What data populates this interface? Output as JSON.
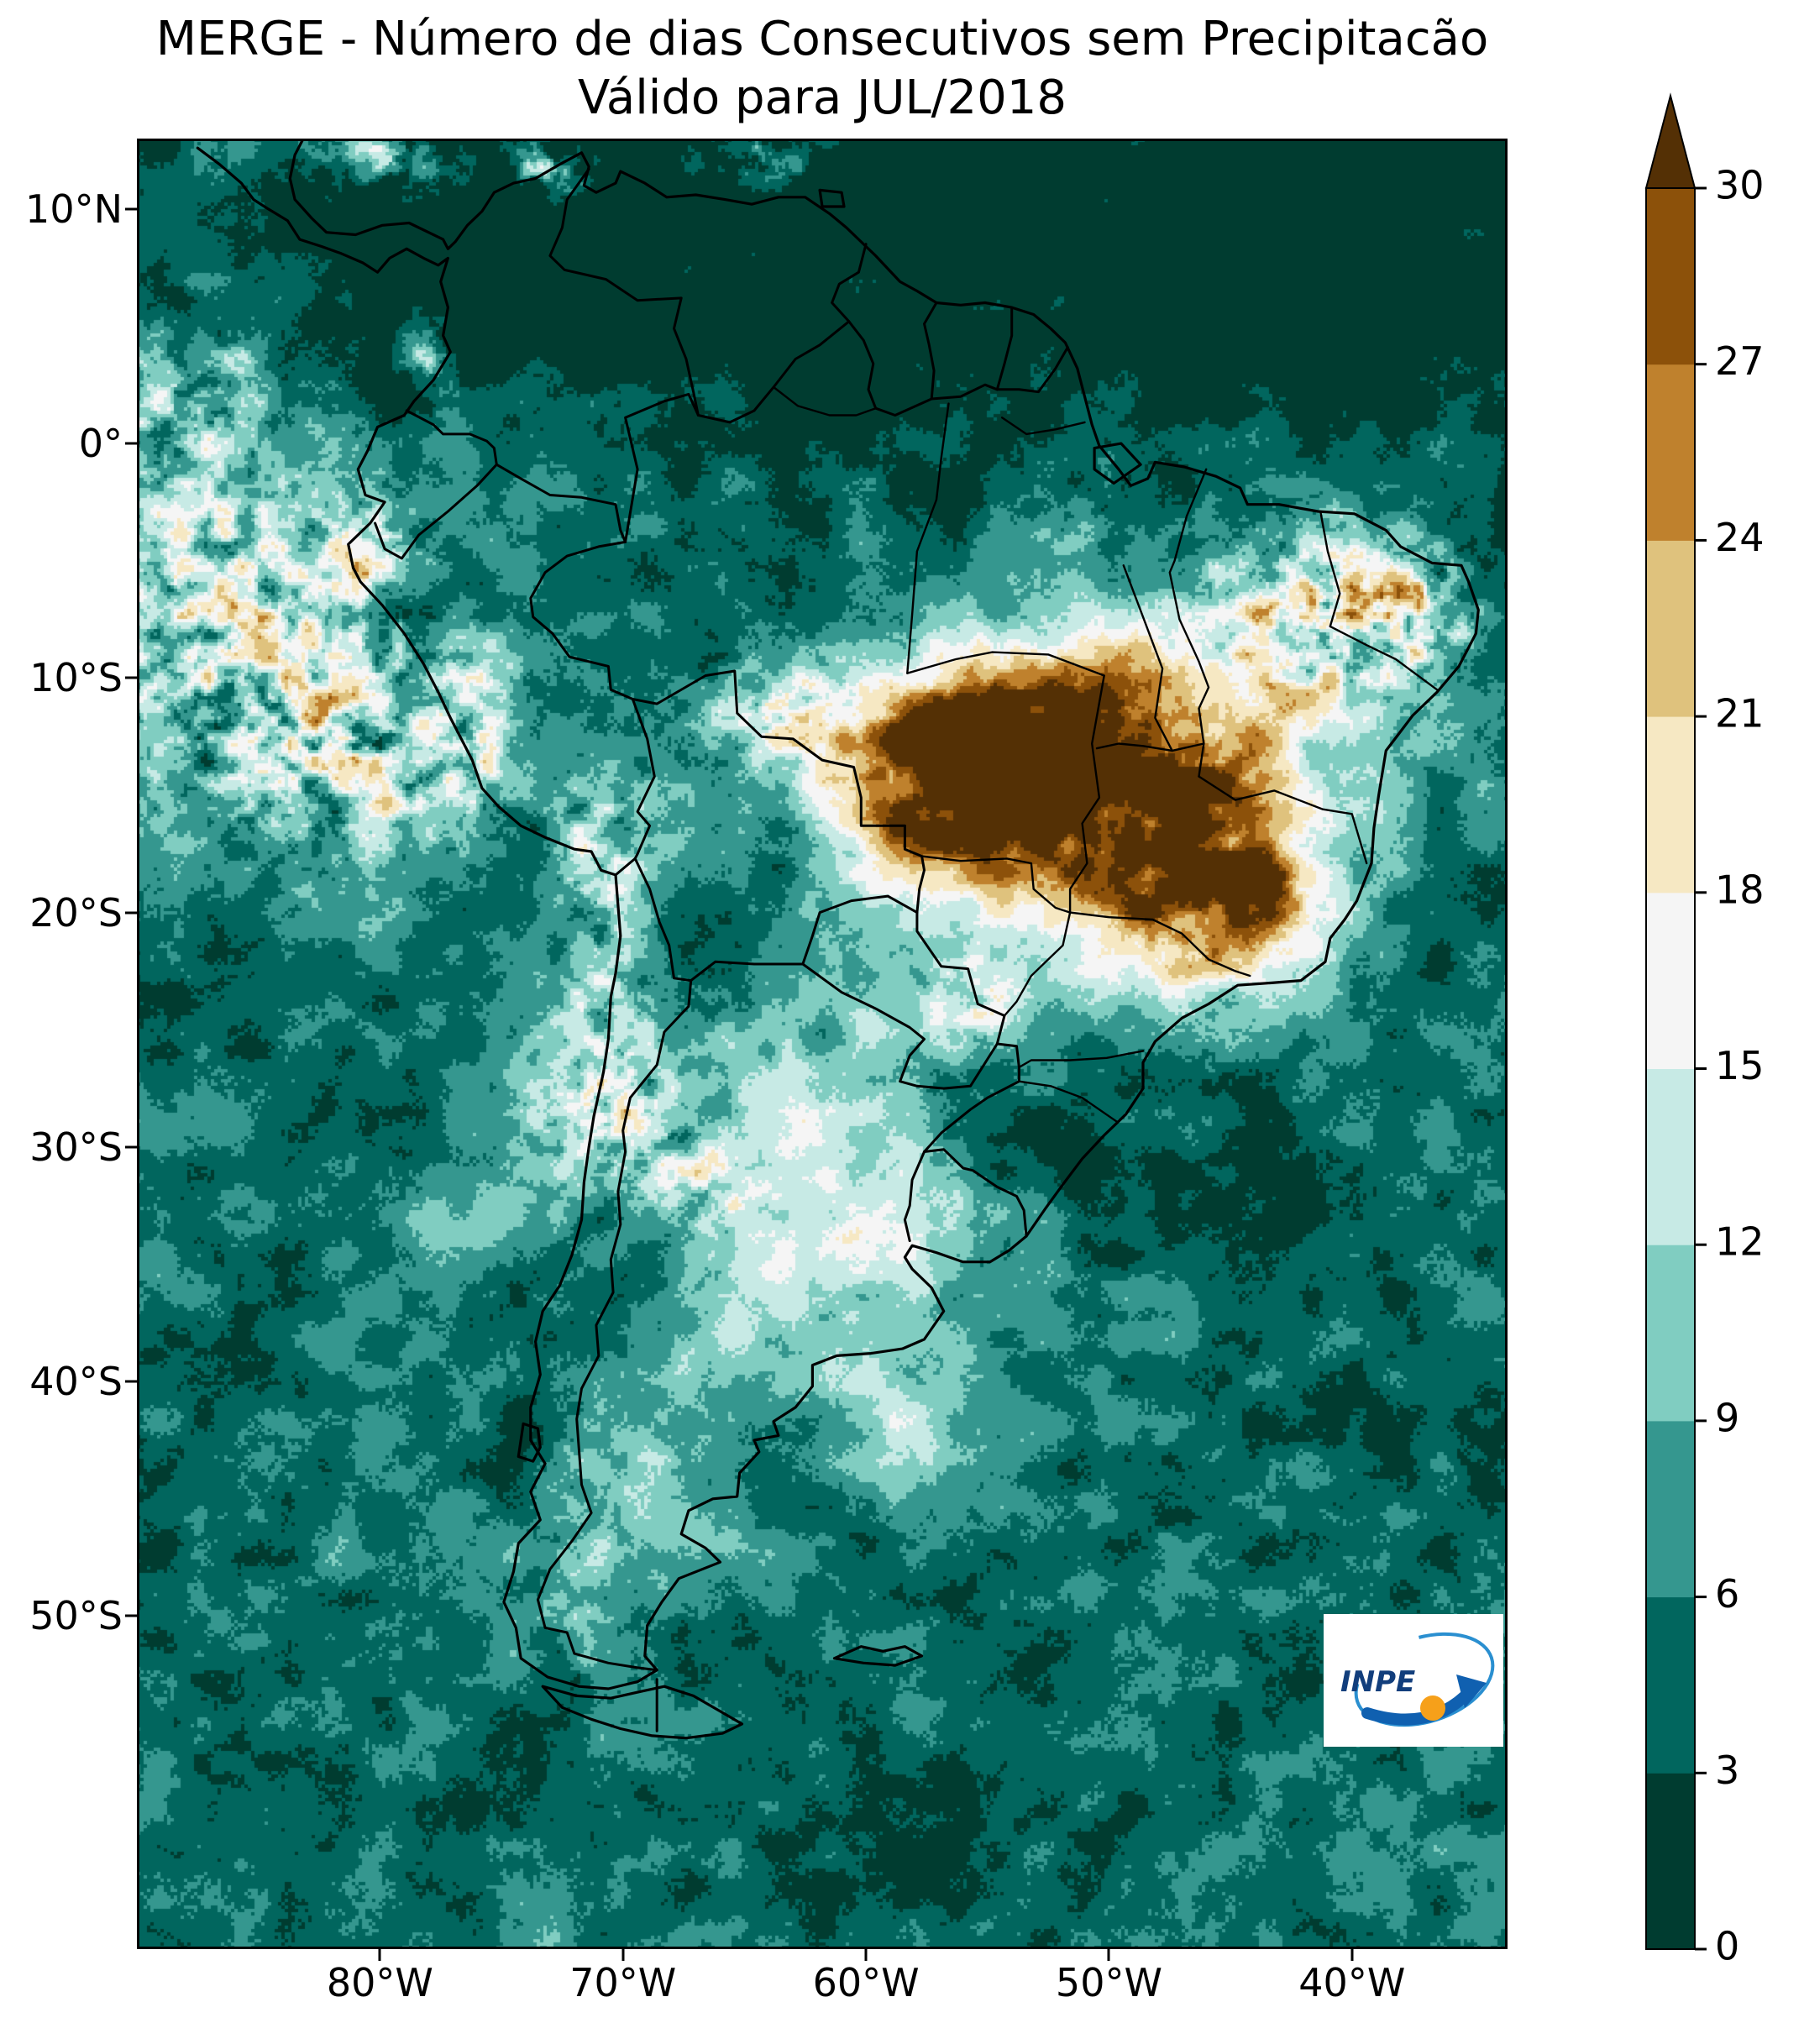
{
  "title": {
    "line1": "MERGE - Número de dias Consecutivos sem Precipitacão",
    "line2": "Válido para JUL/2018"
  },
  "axes": {
    "x_ticks": [
      {
        "label": "80°W",
        "lon": -80
      },
      {
        "label": "70°W",
        "lon": -70
      },
      {
        "label": "60°W",
        "lon": -60
      },
      {
        "label": "50°W",
        "lon": -50
      },
      {
        "label": "40°W",
        "lon": -40
      }
    ],
    "y_ticks": [
      {
        "label": "10°N",
        "lat": 10
      },
      {
        "label": "0°",
        "lat": 0
      },
      {
        "label": "10°S",
        "lat": -10
      },
      {
        "label": "20°S",
        "lat": -20
      },
      {
        "label": "30°S",
        "lat": -30
      },
      {
        "label": "40°S",
        "lat": -40
      },
      {
        "label": "50°S",
        "lat": -50
      }
    ],
    "extent": {
      "lon_min": -90,
      "lon_max": -33.6,
      "lat_min": -64.2,
      "lat_max": 13
    }
  },
  "colorbar": {
    "ticks": [
      "0",
      "3",
      "6",
      "9",
      "12",
      "15",
      "18",
      "21",
      "24",
      "27",
      "30"
    ],
    "band_colors": [
      "#003c30",
      "#01665e",
      "#35978f",
      "#80cdc1",
      "#c7eae5",
      "#f5f5f5",
      "#f6e8c3",
      "#dfc27d",
      "#bf812d",
      "#8c510a"
    ],
    "extend_color": "#543005",
    "extend": "max",
    "interval": 3
  },
  "logo": {
    "text": "INPE"
  },
  "chart_data": {
    "type": "heatmap",
    "title": "MERGE - Número de dias Consecutivos sem Precipitacão — Válido para JUL/2018",
    "value_units": "days",
    "value_range": [
      0,
      30
    ],
    "value_step": 3,
    "colormap": "teal (0) to dark brown (30+), 10 discrete bands plus max-extend arrow",
    "x_ticks": [
      "80°W",
      "70°W",
      "60°W",
      "50°W",
      "40°W"
    ],
    "y_ticks": [
      "10°N",
      "0°",
      "10°S",
      "20°S",
      "30°S",
      "40°S",
      "50°S"
    ],
    "legend_position": "right",
    "notes": "Consecutive dry days over South America for July 2018: >30-day dark-brown core over central and eastern Brazil (Mato Grosso, Goiás, Minas Gerais) and interior Northeast Brazil; brown patches over the SE Pacific off Peru, the Atacama/NW Argentina region and the southern Caribbean; 0-9 day teal over Amazonia, Venezuela and most oceans; pale 12-18 day belt over the Chaco, Pampas and Patagonia."
  }
}
